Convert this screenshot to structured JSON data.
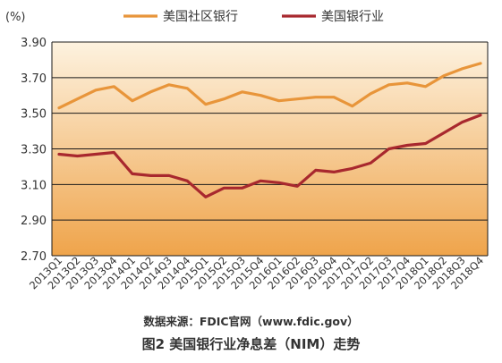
{
  "chart_data": {
    "type": "line",
    "unit_label": "(%)",
    "ylim": [
      2.7,
      3.9
    ],
    "yticks": [
      "3.90",
      "3.70",
      "3.50",
      "3.30",
      "3.10",
      "2.90",
      "2.70"
    ],
    "grid": true,
    "legend_position": "top",
    "categories": [
      "2013Q1",
      "2013Q2",
      "2013Q3",
      "2013Q4",
      "2014Q1",
      "2014Q2",
      "2014Q3",
      "2014Q4",
      "2015Q1",
      "2015Q2",
      "2015Q3",
      "2015Q4",
      "2016Q1",
      "2016Q2",
      "2016Q3",
      "2016Q4",
      "2017Q1",
      "2017Q2",
      "2017Q3",
      "2017Q4",
      "2018Q1",
      "2018Q2",
      "2018Q3",
      "2018Q4"
    ],
    "series": [
      {
        "name": "美国社区银行",
        "color": "#E8953A",
        "values": [
          3.53,
          3.58,
          3.63,
          3.65,
          3.57,
          3.62,
          3.66,
          3.64,
          3.55,
          3.58,
          3.62,
          3.6,
          3.57,
          3.58,
          3.59,
          3.59,
          3.54,
          3.61,
          3.66,
          3.67,
          3.65,
          3.71,
          3.75,
          3.78
        ]
      },
      {
        "name": "美国银行业",
        "color": "#A8282E",
        "values": [
          3.27,
          3.26,
          3.27,
          3.28,
          3.16,
          3.15,
          3.15,
          3.12,
          3.03,
          3.08,
          3.08,
          3.12,
          3.11,
          3.09,
          3.18,
          3.17,
          3.19,
          3.22,
          3.3,
          3.32,
          3.33,
          3.39,
          3.45,
          3.49
        ]
      }
    ],
    "area_gradient": [
      "#FDF2DF",
      "#EFA44B"
    ]
  },
  "source_text": "数据来源：FDIC官网（www.fdic.gov）",
  "caption": "图2  美国银行业净息差（NIM）走势"
}
